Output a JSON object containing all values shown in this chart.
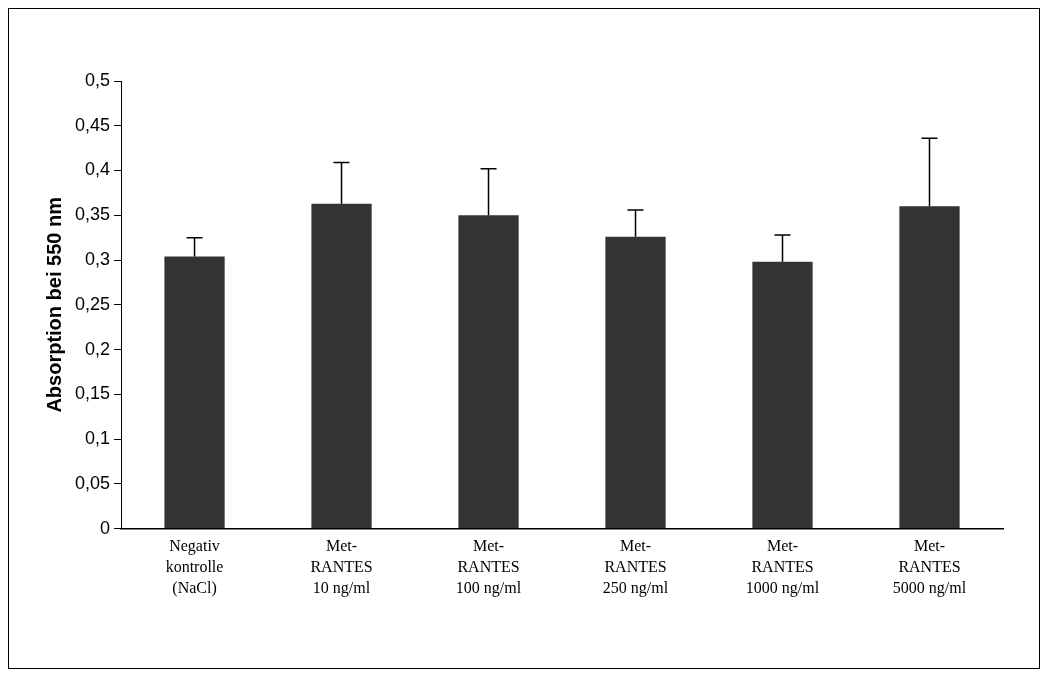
{
  "chart_data": {
    "type": "bar",
    "ylabel": "Absorption bei 550 nm",
    "categories": [
      "Negativ\nkontrolle\n(NaCl)",
      "Met-\nRANTES\n10 ng/ml",
      "Met-\nRANTES\n100 ng/ml",
      "Met-\nRANTES\n250 ng/ml",
      "Met-\nRANTES\n1000 ng/ml",
      "Met-\nRANTES\n5000 ng/ml"
    ],
    "values": [
      0.304,
      0.363,
      0.35,
      0.326,
      0.298,
      0.36
    ],
    "errors": [
      [
        0.304,
        0.325
      ],
      [
        0.363,
        0.409
      ],
      [
        0.35,
        0.402
      ],
      [
        0.326,
        0.356
      ],
      [
        0.298,
        0.328
      ],
      [
        0.36,
        0.436
      ]
    ],
    "color": "#333333",
    "ylim": [
      0,
      0.5
    ],
    "yticks": [
      {
        "value": 0,
        "label": "0"
      },
      {
        "value": 0.05,
        "label": "0,05"
      },
      {
        "value": 0.1,
        "label": "0,1"
      },
      {
        "value": 0.15,
        "label": "0,15"
      },
      {
        "value": 0.2,
        "label": "0,2"
      },
      {
        "value": 0.25,
        "label": "0,25"
      },
      {
        "value": 0.3,
        "label": "0,3"
      },
      {
        "value": 0.35,
        "label": "0,35"
      },
      {
        "value": 0.4,
        "label": "0,4"
      },
      {
        "value": 0.45,
        "label": "0,45"
      },
      {
        "value": 0.5,
        "label": "0,5"
      }
    ],
    "grid": false,
    "legend": false
  }
}
